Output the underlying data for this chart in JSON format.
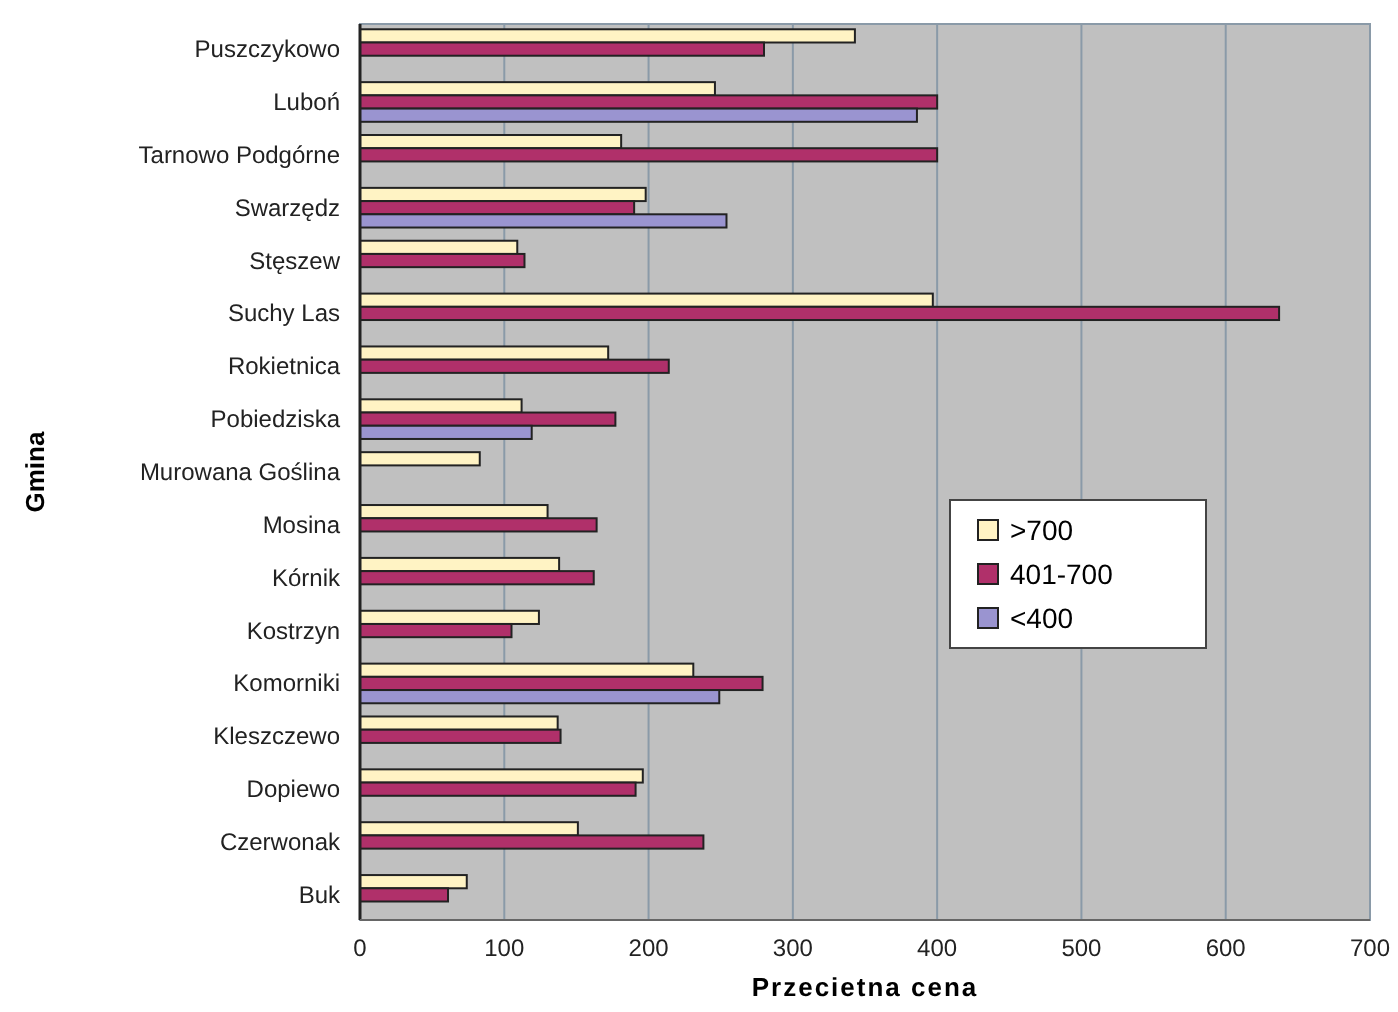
{
  "chart_data": {
    "type": "bar",
    "orientation": "horizontal",
    "xlabel": "Przecietna cena",
    "ylabel": "Gmina",
    "categories": [
      "Puszczykowo",
      "Luboń",
      "Tarnowo Podgórne",
      "Swarzędz",
      "Stęszew",
      "Suchy Las",
      "Rokietnica",
      "Pobiedziska",
      "Murowana Goślina",
      "Mosina",
      "Kórnik",
      "Kostrzyn",
      "Komorniki",
      "Kleszczewo",
      "Dopiewo",
      "Czerwonak",
      "Buk"
    ],
    "series": [
      {
        "name": ">700",
        "color": "#fff3c4",
        "values": [
          343,
          246,
          181,
          198,
          109,
          397,
          172,
          112,
          83,
          130,
          138,
          124,
          231,
          137,
          196,
          151,
          74
        ]
      },
      {
        "name": "401-700",
        "color": "#b0306a",
        "values": [
          280,
          400,
          400,
          190,
          114,
          637,
          214,
          177,
          null,
          164,
          162,
          105,
          279,
          139,
          191,
          238,
          61
        ]
      },
      {
        "name": "<400",
        "color": "#9a94d0",
        "values": [
          null,
          386,
          null,
          254,
          null,
          null,
          null,
          119,
          null,
          null,
          null,
          null,
          249,
          null,
          null,
          null,
          null
        ]
      }
    ],
    "xlim": [
      0,
      700
    ],
    "xticks": [
      0,
      100,
      200,
      300,
      400,
      500,
      600,
      700
    ],
    "grid": "x",
    "legend": "right"
  }
}
